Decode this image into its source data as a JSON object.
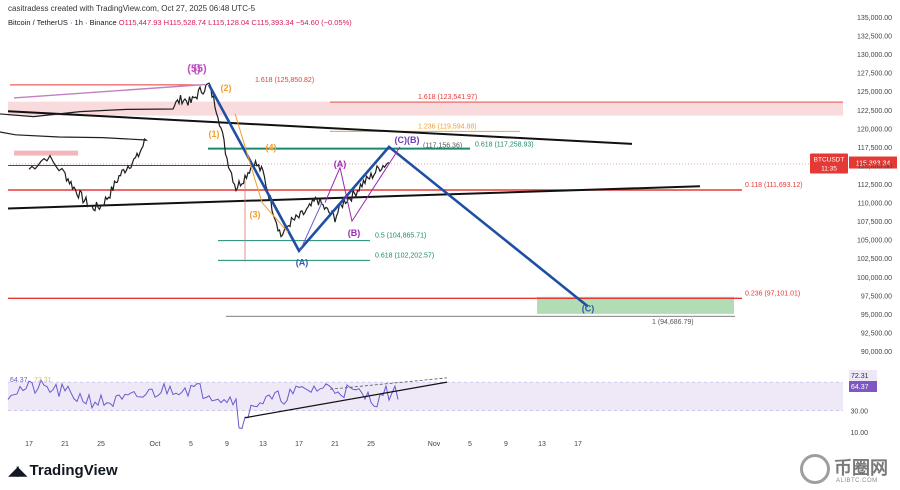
{
  "header": {
    "watermark_line": "casitradess created with TradingView.com, Oct 27, 2025 06:48 UTC-5",
    "symbol": "Bitcoin / TetherUS · 1h · Binance",
    "ohlc": "O115,447.93 H115,528.74 L115,128.04 C115,393.34 −54.60 (−0.05%)"
  },
  "brand": {
    "name": "TradingView"
  },
  "watermark": {
    "cn": "币圈网",
    "en": "ALIBTC.COM"
  },
  "colors": {
    "candle": "#1e1e1e",
    "red_line": "#e53935",
    "blue_path": "#1e4fa3",
    "purple": "#9c27b0",
    "orange": "#f0a030",
    "teal": "#1a8a6e",
    "green_box": "#a5d6a7",
    "rsi": "#6a5acd"
  },
  "chart_data": {
    "type": "line",
    "title": "",
    "xlabel": "",
    "ylabel": "",
    "x_ticks": [
      "17",
      "21",
      "25",
      "Oct",
      "5",
      "9",
      "13",
      "17",
      "21",
      "25",
      "Nov",
      "5",
      "9",
      "13",
      "17"
    ],
    "y_ticks": [
      "135,000.00",
      "132,500.00",
      "130,000.00",
      "127,500.00",
      "125,000.00",
      "122,500.00",
      "120,000.00",
      "117,500.00",
      "115,000.00",
      "112,500.00",
      "110,000.00",
      "107,500.00",
      "105,000.00",
      "102,500.00",
      "100,000.00",
      "97,500.00",
      "95,000.00",
      "92,500.00",
      "90,000.00"
    ],
    "ylim": [
      89000,
      136000
    ],
    "price_path_x": [
      17,
      19,
      21,
      22,
      23,
      24,
      25,
      26,
      27,
      28,
      29,
      30,
      1,
      2,
      3,
      4,
      5,
      6,
      7,
      8,
      9,
      10,
      11,
      12,
      13,
      14,
      15,
      16,
      17,
      18,
      19,
      20,
      21,
      22,
      23,
      24,
      25,
      26,
      27
    ],
    "price_path_y": [
      114500,
      116200,
      113800,
      112000,
      110500,
      109300,
      109500,
      111200,
      113500,
      115000,
      116000,
      118500,
      120500,
      121500,
      123000,
      124000,
      123500,
      125000,
      125850,
      122000,
      116000,
      112000,
      113500,
      115500,
      114000,
      109500,
      105500,
      107300,
      108000,
      109000,
      110500,
      109000,
      108000,
      110200,
      111000,
      112500,
      113500,
      114800,
      115393
    ],
    "current_price_label": "BTCUSDT",
    "current_price": "115,393.34",
    "current_time": "11:35",
    "fib_levels": [
      {
        "label": "1.618 (125,850.82)",
        "value": 125850.82
      },
      {
        "label": "1.618 (123,541.97)",
        "value": 123541.97
      },
      {
        "label": "1.236 (119,594.88)",
        "value": 119594.88
      },
      {
        "label": "0.618 (117,258.93)",
        "value": 117258.93
      },
      {
        "label": "(117,156.36)",
        "value": 117156.36
      },
      {
        "label": "0.118 (111,693.12)",
        "value": 111693.12
      },
      {
        "label": "0.5 (104,865.71)",
        "value": 104865.71
      },
      {
        "label": "0.618 (102,202.57)",
        "value": 102202.57
      },
      {
        "label": "0.236 (97,101.01)",
        "value": 97101.01
      },
      {
        "label": "1 (94,686.79)",
        "value": 94686.79
      }
    ],
    "wave_labels": [
      "(5)",
      "(5)",
      "(2)",
      "(1)",
      "(3)",
      "(4)",
      "(A)",
      "(A)",
      "(B)",
      "(C)(B)",
      "(C)"
    ],
    "projection_path": {
      "x": [
        6,
        17,
        27,
        47
      ],
      "y": [
        125850,
        103500,
        117500,
        96000
      ]
    },
    "rsi": {
      "value": 72.31,
      "value_label": "72.31",
      "ma_label": "64.37",
      "ma_value": 64.37,
      "header_values": [
        "64.37",
        "72.31"
      ],
      "ticks": [
        "30.00",
        "10.00"
      ]
    }
  }
}
